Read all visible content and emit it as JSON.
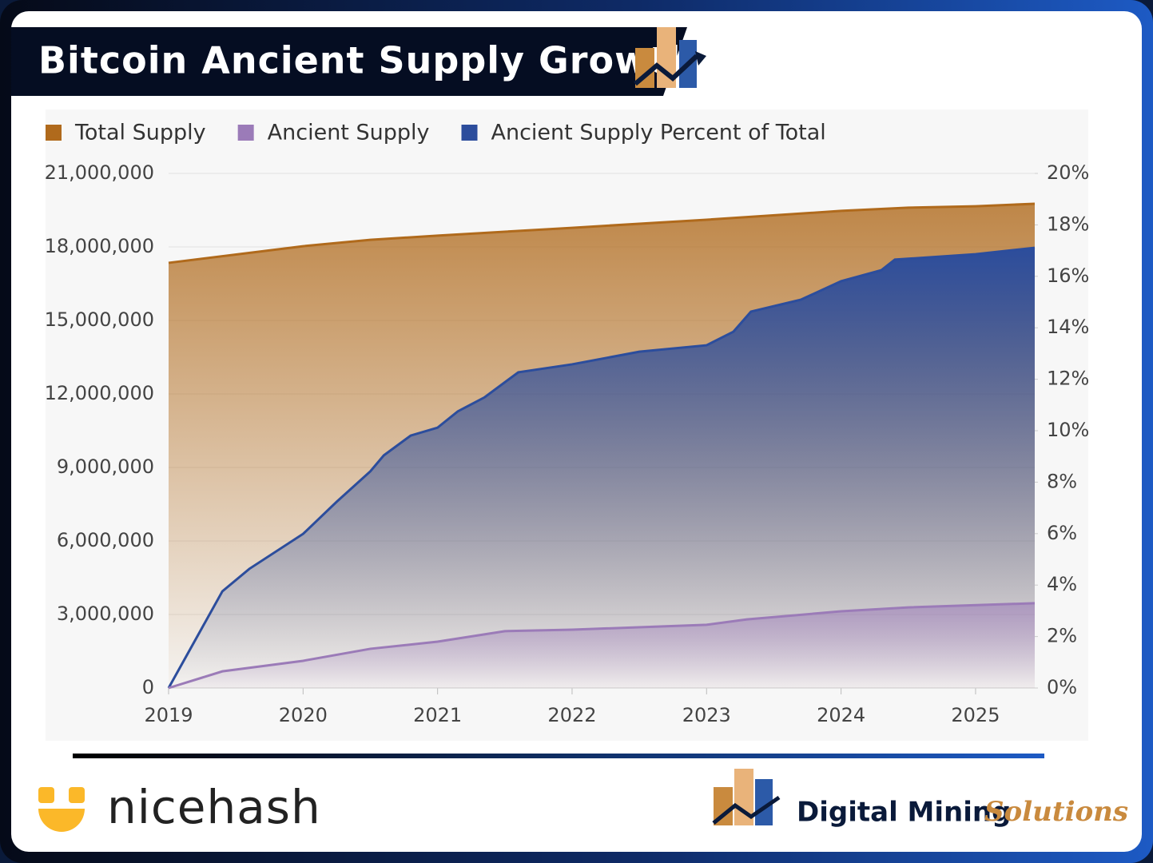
{
  "chart_data": {
    "type": "area",
    "title": "Bitcoin Ancient Supply Growth",
    "xlim": [
      2019,
      2025.44
    ],
    "xticks": [
      2019,
      2020,
      2021,
      2022,
      2023,
      2024,
      2025
    ],
    "ylim": [
      0,
      21000000
    ],
    "yticks": [
      {
        "value": 0,
        "label": "0"
      },
      {
        "value": 3000000,
        "label": "3,000,000"
      },
      {
        "value": 6000000,
        "label": "6,000,000"
      },
      {
        "value": 9000000,
        "label": "9,000,000"
      },
      {
        "value": 12000000,
        "label": "12,000,000"
      },
      {
        "value": 15000000,
        "label": "15,000,000"
      },
      {
        "value": 18000000,
        "label": "18,000,000"
      },
      {
        "value": 21000000,
        "label": "21,000,000"
      }
    ],
    "y2lim": [
      0,
      20
    ],
    "y2ticks": [
      {
        "value": 0,
        "label": "0%"
      },
      {
        "value": 2,
        "label": "2%"
      },
      {
        "value": 4,
        "label": "4%"
      },
      {
        "value": 6,
        "label": "6%"
      },
      {
        "value": 8,
        "label": "8%"
      },
      {
        "value": 10,
        "label": "10%"
      },
      {
        "value": 12,
        "label": "12%"
      },
      {
        "value": 14,
        "label": "14%"
      },
      {
        "value": 16,
        "label": "16%"
      },
      {
        "value": 18,
        "label": "18%"
      },
      {
        "value": 20,
        "label": "20%"
      }
    ],
    "grid": true,
    "legend": "top-left",
    "series": [
      {
        "name": "Total Supply",
        "color": "#b06a1c",
        "x": [
          2019,
          2020,
          2020.5,
          2021,
          2022,
          2023,
          2024,
          2024.5,
          2025,
          2025.44
        ],
        "values": [
          17350000,
          18030000,
          18290000,
          18460000,
          18780000,
          19110000,
          19470000,
          19600000,
          19660000,
          19760000
        ]
      },
      {
        "name": "Ancient Supply",
        "color": "#9b7bb8",
        "x": [
          2019,
          2019.4,
          2020,
          2020.5,
          2021,
          2021.5,
          2022,
          2023,
          2023.3,
          2024,
          2024.5,
          2025.44
        ],
        "values": [
          0,
          680000,
          1110000,
          1600000,
          1890000,
          2320000,
          2380000,
          2580000,
          2800000,
          3130000,
          3290000,
          3460000
        ]
      },
      {
        "name": "Ancient Supply Percent of Total",
        "color": "#2c4d9c",
        "axis": "y2",
        "x": [
          2019,
          2019.4,
          2019.6,
          2020,
          2020.25,
          2020.5,
          2020.6,
          2020.8,
          2021,
          2021.15,
          2021.35,
          2021.6,
          2022,
          2022.5,
          2023,
          2023.2,
          2023.33,
          2023.7,
          2024,
          2024.3,
          2024.4,
          2025,
          2025.44
        ],
        "values": [
          0,
          3.76,
          4.63,
          5.99,
          7.24,
          8.42,
          9.04,
          9.81,
          10.12,
          10.75,
          11.3,
          12.27,
          12.58,
          13.07,
          13.32,
          13.85,
          14.63,
          15.09,
          15.81,
          16.24,
          16.65,
          16.86,
          17.11
        ]
      }
    ]
  },
  "branding": {
    "left": "nicehash",
    "right_main": "Digital Mining",
    "right_accent": "Solutions"
  }
}
